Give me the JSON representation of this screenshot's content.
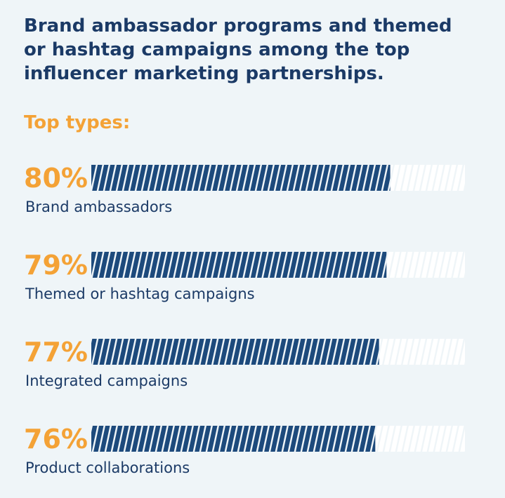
{
  "chart_data": {
    "type": "bar",
    "title": "Brand ambassador programs and themed or hashtag campaigns among the top influencer marketing partnerships.",
    "subtitle": "Top types:",
    "categories": [
      "Brand ambassadors",
      "Themed or hashtag campaigns",
      "Integrated campaigns",
      "Product collaborations"
    ],
    "values": [
      80,
      79,
      77,
      76
    ],
    "value_labels": [
      "80%",
      "79%",
      "77%",
      "76%"
    ],
    "color": "#1d4a7c",
    "xlim": [
      0,
      100
    ]
  }
}
